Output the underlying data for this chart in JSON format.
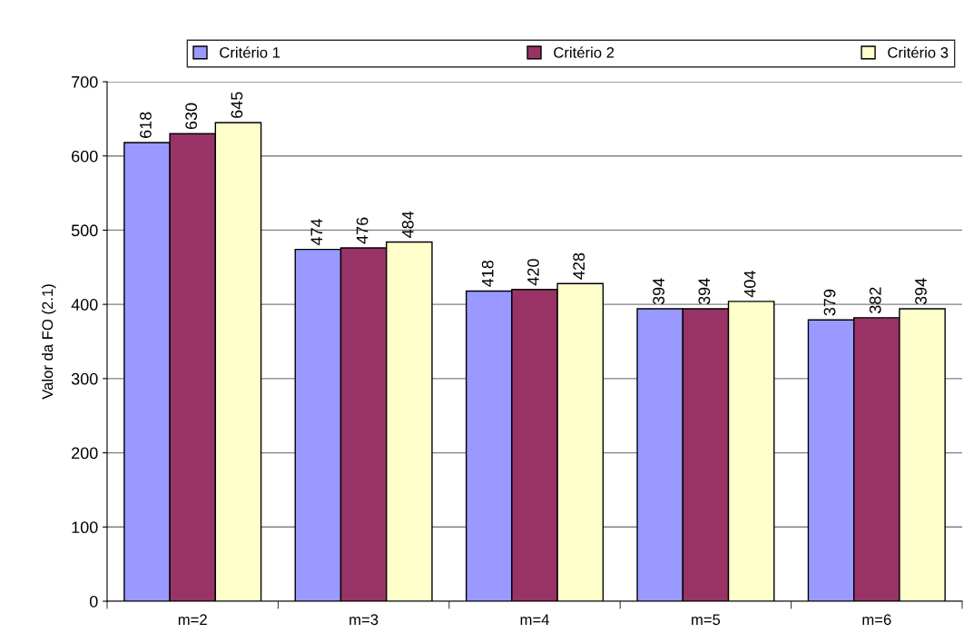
{
  "chart_data": {
    "type": "bar",
    "ylabel": "Valor da FO (2.1)",
    "categories": [
      "m=2",
      "m=3",
      "m=4",
      "m=5",
      "m=6"
    ],
    "series": [
      {
        "name": "Critério 1",
        "color": "#9999ff",
        "values": [
          618,
          474,
          418,
          394,
          379
        ]
      },
      {
        "name": "Critério 2",
        "color": "#993366",
        "values": [
          630,
          476,
          420,
          394,
          382
        ]
      },
      {
        "name": "Critério 3",
        "color": "#ffffcc",
        "values": [
          645,
          484,
          428,
          404,
          394
        ]
      }
    ],
    "ylim": [
      0,
      700
    ],
    "yticks": [
      0,
      100,
      200,
      300,
      400,
      500,
      600,
      700
    ],
    "grid": "y",
    "legend": "top",
    "data_labels": true
  }
}
